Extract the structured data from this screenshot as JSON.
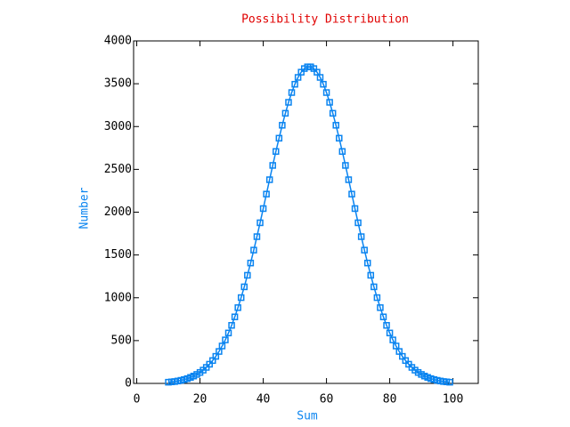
{
  "chart_data": {
    "type": "line",
    "title": "Possibility Distribution",
    "x_label": "Sum",
    "y_label": "Number",
    "x": [
      10,
      11,
      12,
      13,
      14,
      15,
      16,
      17,
      18,
      19,
      20,
      21,
      22,
      23,
      24,
      25,
      26,
      27,
      28,
      29,
      30,
      31,
      32,
      33,
      34,
      35,
      36,
      37,
      38,
      39,
      40,
      41,
      42,
      43,
      44,
      45,
      46,
      47,
      48,
      49,
      50,
      51,
      52,
      53,
      54,
      55,
      56,
      57,
      58,
      59,
      60,
      61,
      62,
      63,
      64,
      65,
      66,
      67,
      68,
      69,
      70,
      71,
      72,
      73,
      74,
      75,
      76,
      77,
      78,
      79,
      80,
      81,
      82,
      83,
      84,
      85,
      86,
      87,
      88,
      89,
      90,
      91,
      92,
      93,
      94,
      95,
      96,
      97,
      98,
      99
    ],
    "series": [
      {
        "color": "#0a84f0",
        "values": [
          14,
          18,
          22,
          28,
          36,
          45,
          56,
          70,
          86,
          105,
          128,
          155,
          187,
          224,
          267,
          316,
          373,
          437,
          508,
          589,
          678,
          777,
          885,
          1002,
          1128,
          1263,
          1406,
          1557,
          1714,
          1876,
          2042,
          2211,
          2379,
          2546,
          2709,
          2864,
          3015,
          3155,
          3283,
          3397,
          3494,
          3574,
          3635,
          3677,
          3697,
          3697,
          3677,
          3635,
          3574,
          3494,
          3397,
          3283,
          3155,
          3015,
          2864,
          2709,
          2546,
          2379,
          2211,
          2042,
          1876,
          1714,
          1557,
          1406,
          1263,
          1128,
          1002,
          885,
          777,
          678,
          589,
          508,
          437,
          373,
          316,
          267,
          224,
          187,
          155,
          128,
          105,
          86,
          70,
          56,
          45,
          36,
          28,
          22,
          18,
          14
        ]
      }
    ],
    "xlim": [
      -1,
      108
    ],
    "xticks": [
      0,
      20,
      40,
      60,
      80,
      100
    ],
    "ylim": [
      0,
      4000
    ],
    "yticks": [
      0,
      500,
      1000,
      1500,
      2000,
      2500,
      3000,
      3500,
      4000
    ]
  }
}
